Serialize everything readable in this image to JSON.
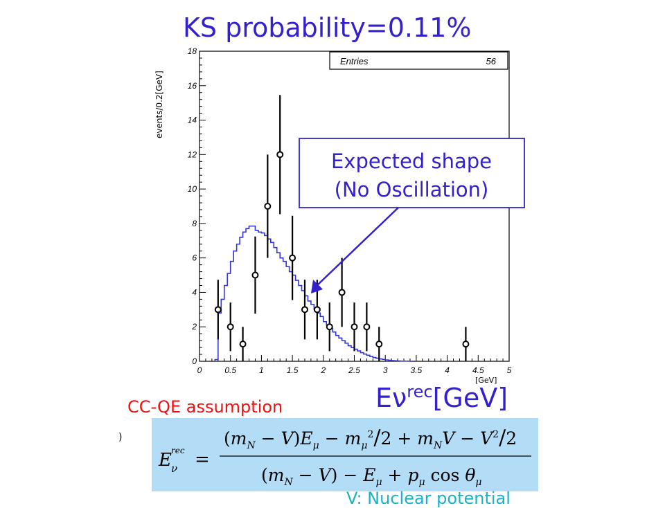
{
  "chart_data": {
    "type": "histogram",
    "title": "KS probability=0.11%",
    "ylabel": "events/0.2[GeV]",
    "xlabel_main": "Eν",
    "xlabel_sup": "rec",
    "xlabel_unit": "[GeV]",
    "x_unit_small": "[GeV]",
    "xlim": [
      0,
      5
    ],
    "ylim": [
      0,
      18
    ],
    "x_ticks": [
      "0",
      "0.5",
      "1",
      "1.5",
      "2",
      "2.5",
      "3",
      "3.5",
      "4",
      "4.5",
      "5"
    ],
    "y_ticks": [
      "0",
      "2",
      "4",
      "6",
      "8",
      "10",
      "12",
      "14",
      "16",
      "18"
    ],
    "stats": {
      "label": "Entries",
      "value": "56"
    },
    "data_points": [
      {
        "x": 0.3,
        "y": 3,
        "err": 1.73
      },
      {
        "x": 0.5,
        "y": 2,
        "err": 1.41
      },
      {
        "x": 0.7,
        "y": 1,
        "err": 1.0
      },
      {
        "x": 0.9,
        "y": 5,
        "err": 2.24
      },
      {
        "x": 1.1,
        "y": 9,
        "err": 3.0
      },
      {
        "x": 1.3,
        "y": 12,
        "err": 3.46
      },
      {
        "x": 1.5,
        "y": 6,
        "err": 2.45
      },
      {
        "x": 1.7,
        "y": 3,
        "err": 1.73
      },
      {
        "x": 1.9,
        "y": 3,
        "err": 1.73
      },
      {
        "x": 2.1,
        "y": 2,
        "err": 1.41
      },
      {
        "x": 2.3,
        "y": 4,
        "err": 2.0
      },
      {
        "x": 2.5,
        "y": 2,
        "err": 1.41
      },
      {
        "x": 2.7,
        "y": 2,
        "err": 1.41
      },
      {
        "x": 2.9,
        "y": 1,
        "err": 1.0
      },
      {
        "x": 4.3,
        "y": 1,
        "err": 1.0
      }
    ],
    "expected_shape": {
      "bin_width": 0.05,
      "x_start": 0.25,
      "values": [
        0.1,
        2.8,
        3.6,
        4.4,
        5.1,
        5.8,
        6.4,
        6.8,
        7.2,
        7.5,
        7.7,
        7.85,
        7.85,
        7.6,
        7.5,
        7.45,
        7.3,
        7.1,
        6.9,
        6.6,
        6.3,
        6.0,
        5.8,
        5.5,
        5.2,
        5.0,
        4.7,
        4.4,
        4.1,
        3.8,
        3.5,
        3.3,
        3.0,
        2.8,
        2.6,
        2.3,
        2.1,
        1.9,
        1.7,
        1.5,
        1.35,
        1.2,
        1.05,
        0.9,
        0.8,
        0.7,
        0.6,
        0.5,
        0.42,
        0.35,
        0.28,
        0.22,
        0.18,
        0.14,
        0.11,
        0.08,
        0.06,
        0.04,
        0.03,
        0.02,
        0.01,
        0.01,
        0.01,
        0.0
      ],
      "color": "#3333dd"
    },
    "annotation": {
      "line1": "Expected shape",
      "line2": "(No Oscillation)",
      "color": "#3322cc"
    }
  },
  "caption": {
    "assumption": "CC-QE assumption",
    "assumption_color": "#ee1111",
    "left_mark": ")",
    "bottom_text": "V: Nuclear potential"
  },
  "formula": {
    "lhs_main": "E",
    "lhs_sub": "ν",
    "lhs_sup": "rec",
    "numerator": "(m_N − V)E_μ − m_μ²/2 + m_N V − V²/2",
    "denominator": "(m_N − V) − E_μ + p_μ cos θ_μ",
    "box_color": "#b3ddf7"
  }
}
